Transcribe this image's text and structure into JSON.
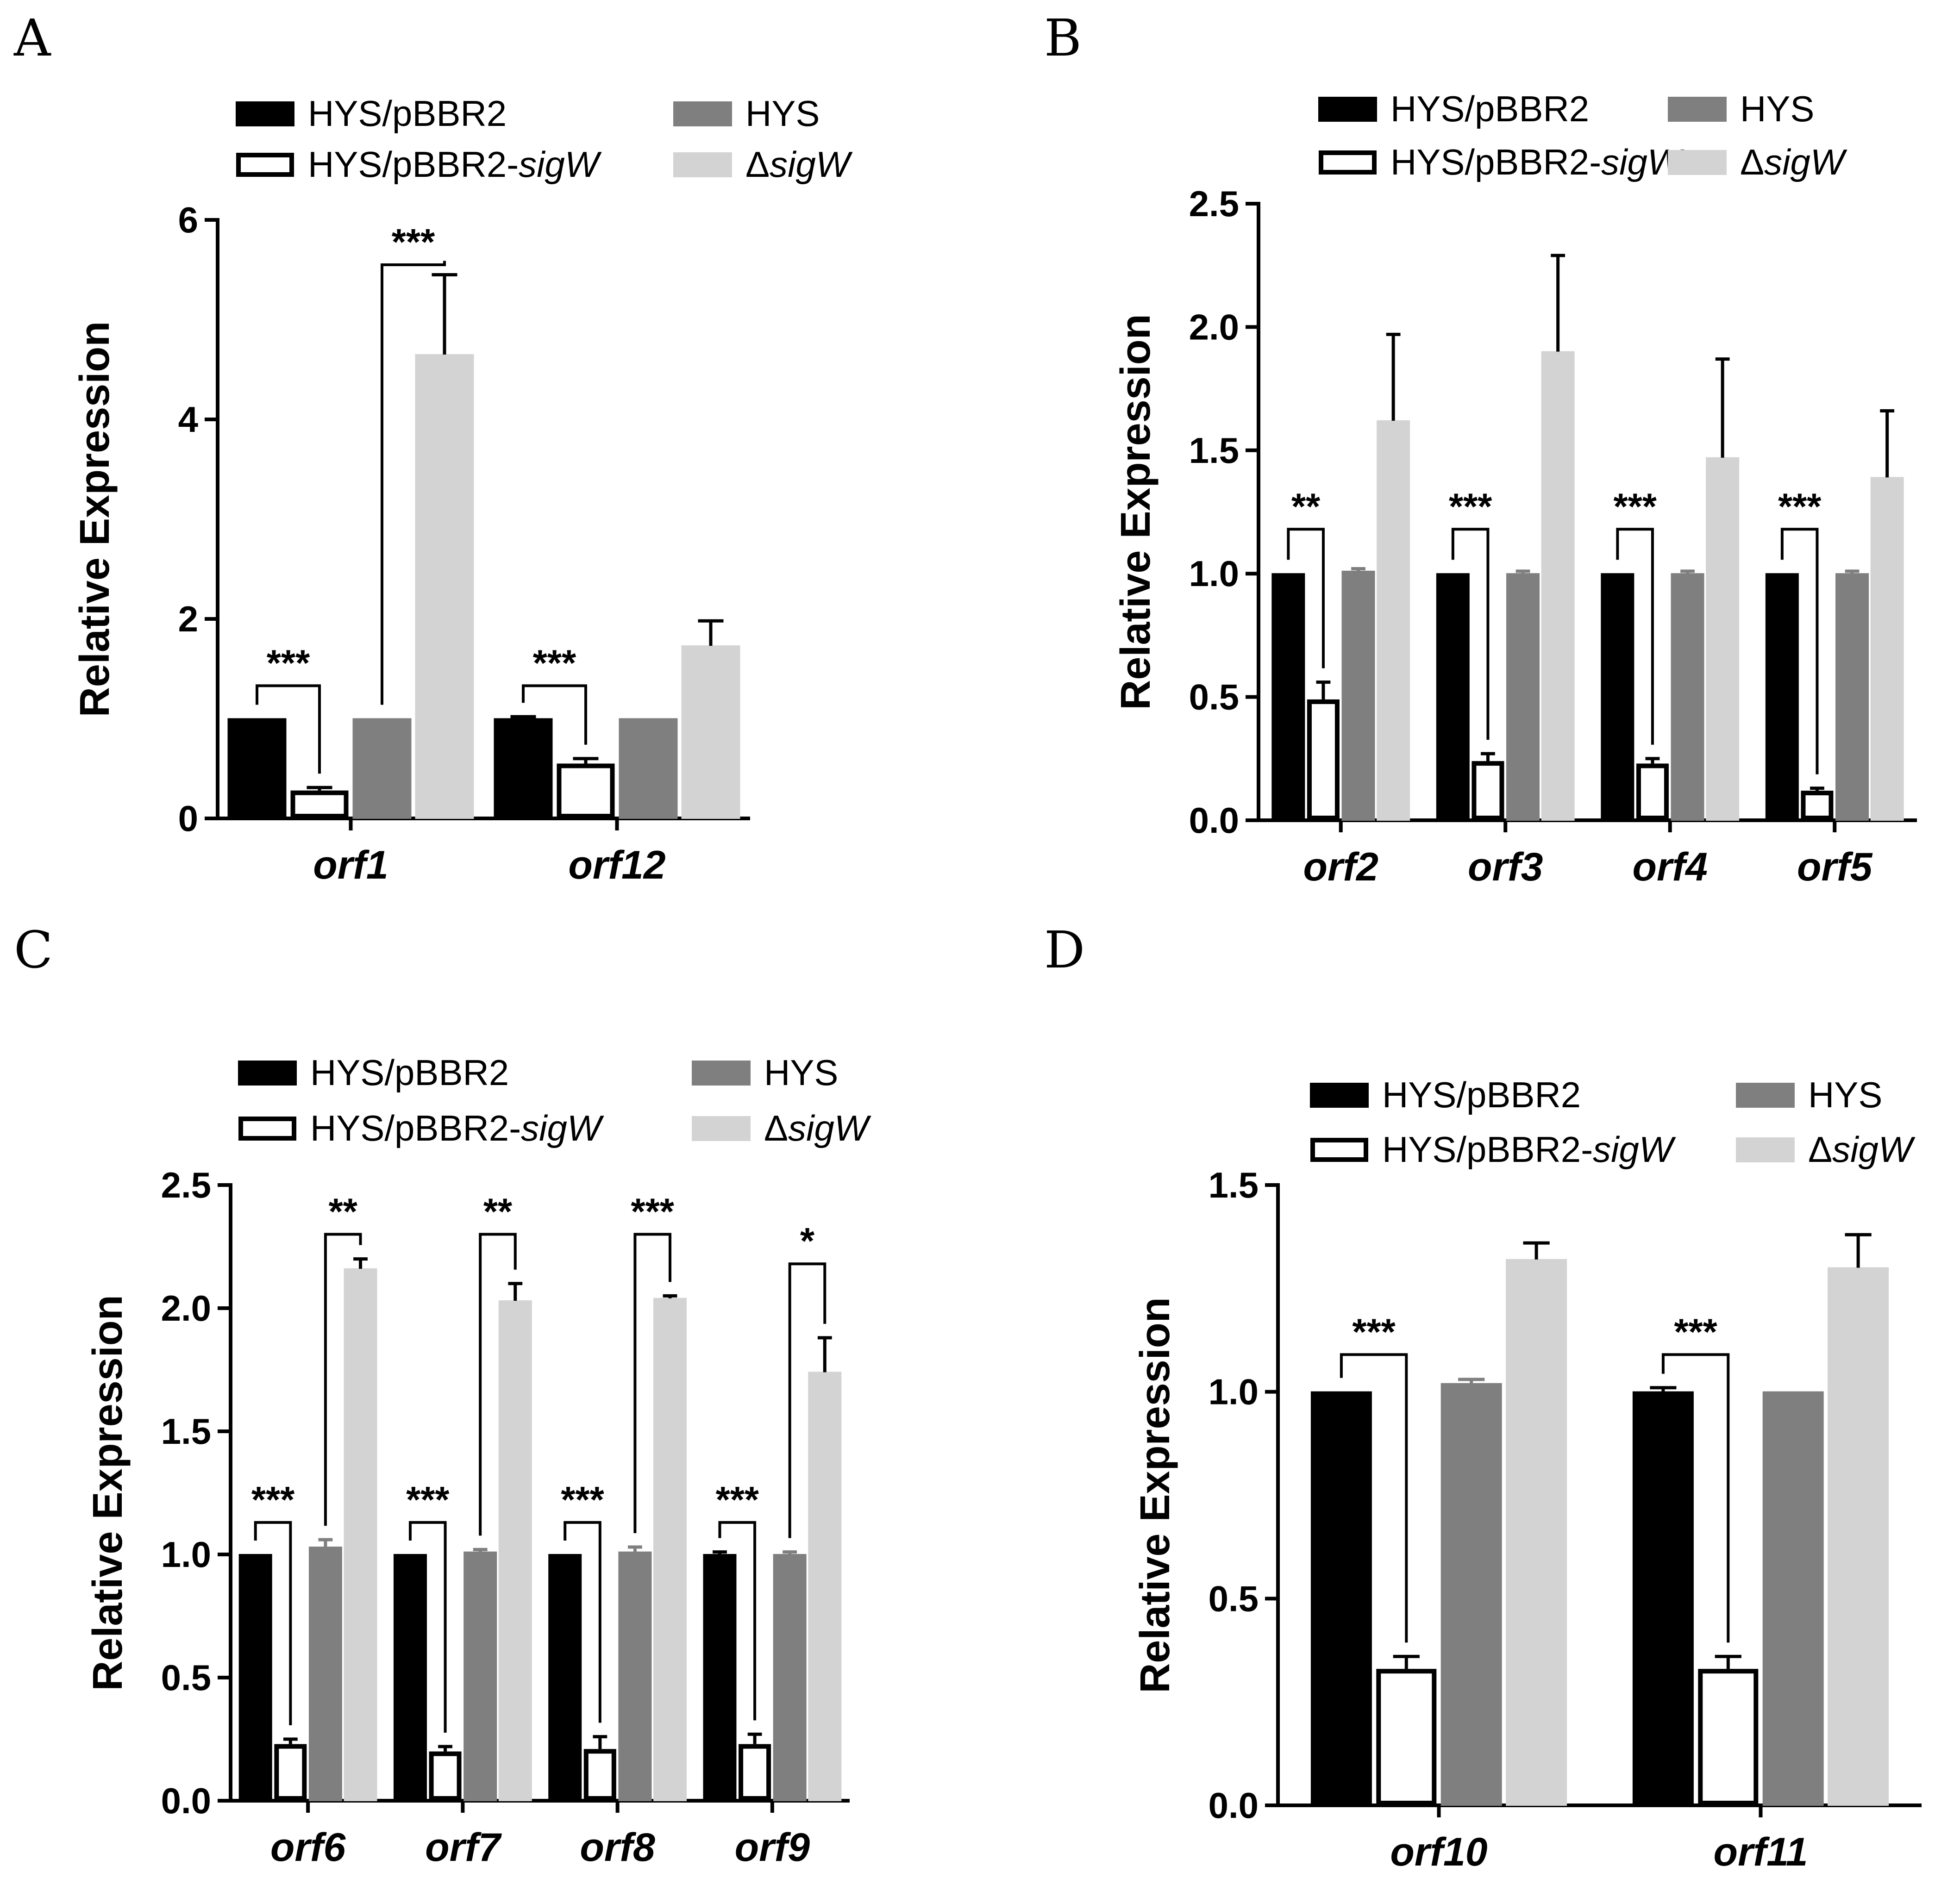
{
  "figure": {
    "colors": {
      "HYS/pBBR2": "#000000",
      "HYS/pBBR2-sigW": "#ffffff",
      "HYS": "#7f7f7f",
      "ΔsigW": "#d3d3d3"
    }
  },
  "chart_data": [
    {
      "panel": "A",
      "type": "bar",
      "ylabel": "Relative Expression",
      "ylim": [
        0,
        6
      ],
      "yticks": [
        "0",
        "2",
        "4",
        "6"
      ],
      "categories": [
        "orf1",
        "orf12"
      ],
      "legend": [
        {
          "prefix": "HYS/pBBR2",
          "italic": ""
        },
        {
          "prefix": "HYS/pBBR2-",
          "italic": "sigW"
        },
        {
          "prefix": "HYS",
          "italic": ""
        },
        {
          "prefix": "Δ",
          "italic": "sigW"
        }
      ],
      "series": [
        {
          "name": "HYS/pBBR2",
          "values": [
            1.0,
            1.0
          ],
          "errors": [
            0.0,
            0.02
          ]
        },
        {
          "name": "HYS/pBBR2-sigW",
          "values": [
            0.28,
            0.55
          ],
          "errors": [
            0.03,
            0.05
          ]
        },
        {
          "name": "HYS",
          "values": [
            1.0,
            1.0
          ],
          "errors": [
            0.0,
            0.0
          ]
        },
        {
          "name": "ΔsigW",
          "values": [
            4.65,
            1.73
          ],
          "errors": [
            0.8,
            0.25
          ]
        }
      ],
      "significance": [
        {
          "category": 0,
          "from": 0,
          "to": 1,
          "label": "***",
          "y": 1.33
        },
        {
          "category": 0,
          "from": 2,
          "to": 3,
          "label": "***",
          "y": 5.55
        },
        {
          "category": 1,
          "from": 0,
          "to": 1,
          "label": "***",
          "y": 1.33
        }
      ]
    },
    {
      "panel": "B",
      "type": "bar",
      "ylabel": "Relative Expression",
      "ylim": [
        0,
        2.5
      ],
      "yticks": [
        "0.0",
        "0.5",
        "1.0",
        "1.5",
        "2.0",
        "2.5"
      ],
      "categories": [
        "orf2",
        "orf3",
        "orf4",
        "orf5"
      ],
      "legend": [
        {
          "prefix": "HYS/pBBR2",
          "italic": ""
        },
        {
          "prefix": "HYS/pBBR2-",
          "italic": "sigW"
        },
        {
          "prefix": "HYS",
          "italic": ""
        },
        {
          "prefix": "Δ",
          "italic": "sigW"
        }
      ],
      "series": [
        {
          "name": "HYS/pBBR2",
          "values": [
            1.0,
            1.0,
            1.0,
            1.0
          ],
          "errors": [
            0.0,
            0.0,
            0.0,
            0.0
          ]
        },
        {
          "name": "HYS/pBBR2-sigW",
          "values": [
            0.49,
            0.24,
            0.23,
            0.12
          ],
          "errors": [
            0.07,
            0.03,
            0.02,
            0.01
          ]
        },
        {
          "name": "HYS",
          "values": [
            1.01,
            1.0,
            1.0,
            1.0
          ],
          "errors": [
            0.01,
            0.01,
            0.01,
            0.01
          ]
        },
        {
          "name": "ΔsigW",
          "values": [
            1.62,
            1.9,
            1.47,
            1.39
          ],
          "errors": [
            0.35,
            0.39,
            0.4,
            0.27
          ]
        }
      ],
      "significance": [
        {
          "category": 0,
          "from": 0,
          "to": 1,
          "label": "**",
          "y": 1.18
        },
        {
          "category": 1,
          "from": 0,
          "to": 1,
          "label": "***",
          "y": 1.18
        },
        {
          "category": 2,
          "from": 0,
          "to": 1,
          "label": "***",
          "y": 1.18
        },
        {
          "category": 3,
          "from": 0,
          "to": 1,
          "label": "***",
          "y": 1.18
        }
      ]
    },
    {
      "panel": "C",
      "type": "bar",
      "ylabel": "Relative Expression",
      "ylim": [
        0,
        2.5
      ],
      "yticks": [
        "0.0",
        "0.5",
        "1.0",
        "1.5",
        "2.0",
        "2.5"
      ],
      "categories": [
        "orf6",
        "orf7",
        "orf8",
        "orf9"
      ],
      "legend": [
        {
          "prefix": "HYS/pBBR2",
          "italic": ""
        },
        {
          "prefix": "HYS/pBBR2-",
          "italic": "sigW"
        },
        {
          "prefix": "HYS",
          "italic": ""
        },
        {
          "prefix": "Δ",
          "italic": "sigW"
        }
      ],
      "series": [
        {
          "name": "HYS/pBBR2",
          "values": [
            1.0,
            1.0,
            1.0,
            1.0
          ],
          "errors": [
            0.0,
            0.0,
            0.0,
            0.01
          ]
        },
        {
          "name": "HYS/pBBR2-sigW",
          "values": [
            0.23,
            0.2,
            0.21,
            0.23
          ],
          "errors": [
            0.02,
            0.02,
            0.05,
            0.04
          ]
        },
        {
          "name": "HYS",
          "values": [
            1.03,
            1.01,
            1.01,
            1.0
          ],
          "errors": [
            0.03,
            0.01,
            0.02,
            0.01
          ]
        },
        {
          "name": "ΔsigW",
          "values": [
            2.16,
            2.03,
            2.04,
            1.74
          ],
          "errors": [
            0.04,
            0.07,
            0.01,
            0.14
          ]
        }
      ],
      "significance": [
        {
          "category": 0,
          "from": 0,
          "to": 1,
          "label": "***",
          "y": 1.13
        },
        {
          "category": 1,
          "from": 0,
          "to": 1,
          "label": "***",
          "y": 1.13
        },
        {
          "category": 2,
          "from": 0,
          "to": 1,
          "label": "***",
          "y": 1.13
        },
        {
          "category": 3,
          "from": 0,
          "to": 1,
          "label": "***",
          "y": 1.13
        },
        {
          "category": 0,
          "from": 2,
          "to": 3,
          "label": "**",
          "y": 2.3
        },
        {
          "category": 1,
          "from": 2,
          "to": 3,
          "label": "**",
          "y": 2.3
        },
        {
          "category": 2,
          "from": 2,
          "to": 3,
          "label": "***",
          "y": 2.3
        },
        {
          "category": 3,
          "from": 2,
          "to": 3,
          "label": "*",
          "y": 2.18
        }
      ]
    },
    {
      "panel": "D",
      "type": "bar",
      "ylabel": "Relative Expression",
      "ylim": [
        0,
        1.5
      ],
      "yticks": [
        "0.0",
        "0.5",
        "1.0",
        "1.5"
      ],
      "categories": [
        "orf10",
        "orf11"
      ],
      "legend": [
        {
          "prefix": "HYS/pBBR2",
          "italic": ""
        },
        {
          "prefix": "HYS/pBBR2-",
          "italic": "sigW"
        },
        {
          "prefix": "HYS",
          "italic": ""
        },
        {
          "prefix": "Δ",
          "italic": "sigW"
        }
      ],
      "series": [
        {
          "name": "HYS/pBBR2",
          "values": [
            1.0,
            1.0
          ],
          "errors": [
            0.0,
            0.01
          ]
        },
        {
          "name": "HYS/pBBR2-sigW",
          "values": [
            0.33,
            0.33
          ],
          "errors": [
            0.03,
            0.03
          ]
        },
        {
          "name": "HYS",
          "values": [
            1.02,
            1.0
          ],
          "errors": [
            0.01,
            0.0
          ]
        },
        {
          "name": "ΔsigW",
          "values": [
            1.32,
            1.3
          ],
          "errors": [
            0.04,
            0.08
          ]
        }
      ],
      "significance": [
        {
          "category": 0,
          "from": 0,
          "to": 1,
          "label": "***",
          "y": 1.09
        },
        {
          "category": 1,
          "from": 0,
          "to": 1,
          "label": "***",
          "y": 1.09
        }
      ]
    }
  ]
}
